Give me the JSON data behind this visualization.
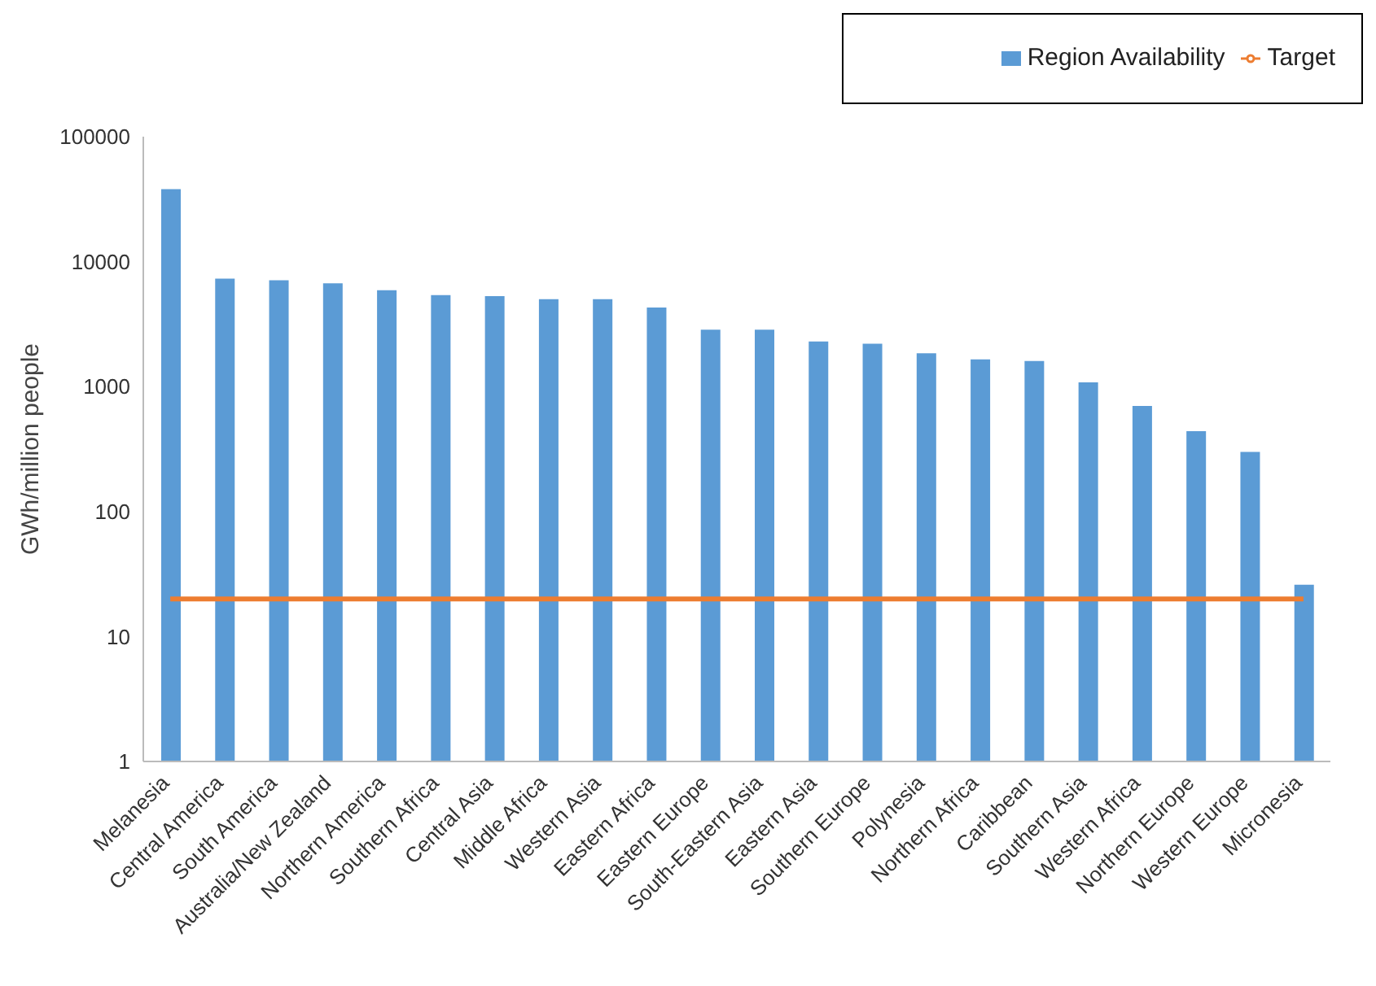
{
  "chart_data": {
    "type": "bar",
    "ylabel": "GWh/million people",
    "categories": [
      "Melanesia",
      "Central America",
      "South America",
      "Australia/New Zealand",
      "Northern America",
      "Southern Africa",
      "Central Asia",
      "Middle Africa",
      "Western Asia",
      "Eastern Africa",
      "Eastern Europe",
      "South-Eastern Asia",
      "Eastern Asia",
      "Southern Europe",
      "Polynesia",
      "Northern Africa",
      "Caribbean",
      "Southern Asia",
      "Western Africa",
      "Northern Europe",
      "Western Europe",
      "Micronesia"
    ],
    "series": [
      {
        "name": "Region Availability",
        "color": "#5b9bd5",
        "values": [
          38000,
          7300,
          7100,
          6700,
          5900,
          5400,
          5300,
          5000,
          5000,
          4300,
          2850,
          2850,
          2300,
          2200,
          1850,
          1650,
          1600,
          1080,
          700,
          440,
          300,
          26
        ]
      },
      {
        "name": "Target",
        "type": "line",
        "color": "#ed7d31",
        "marker": "none",
        "values": [
          20,
          20,
          20,
          20,
          20,
          20,
          20,
          20,
          20,
          20,
          20,
          20,
          20,
          20,
          20,
          20,
          20,
          20,
          20,
          20,
          20,
          20
        ]
      }
    ],
    "log": "y",
    "ylim": [
      1,
      100000
    ],
    "yticks": [
      1,
      10,
      100,
      1000,
      10000,
      100000
    ],
    "grid": false,
    "legend": "top right"
  }
}
